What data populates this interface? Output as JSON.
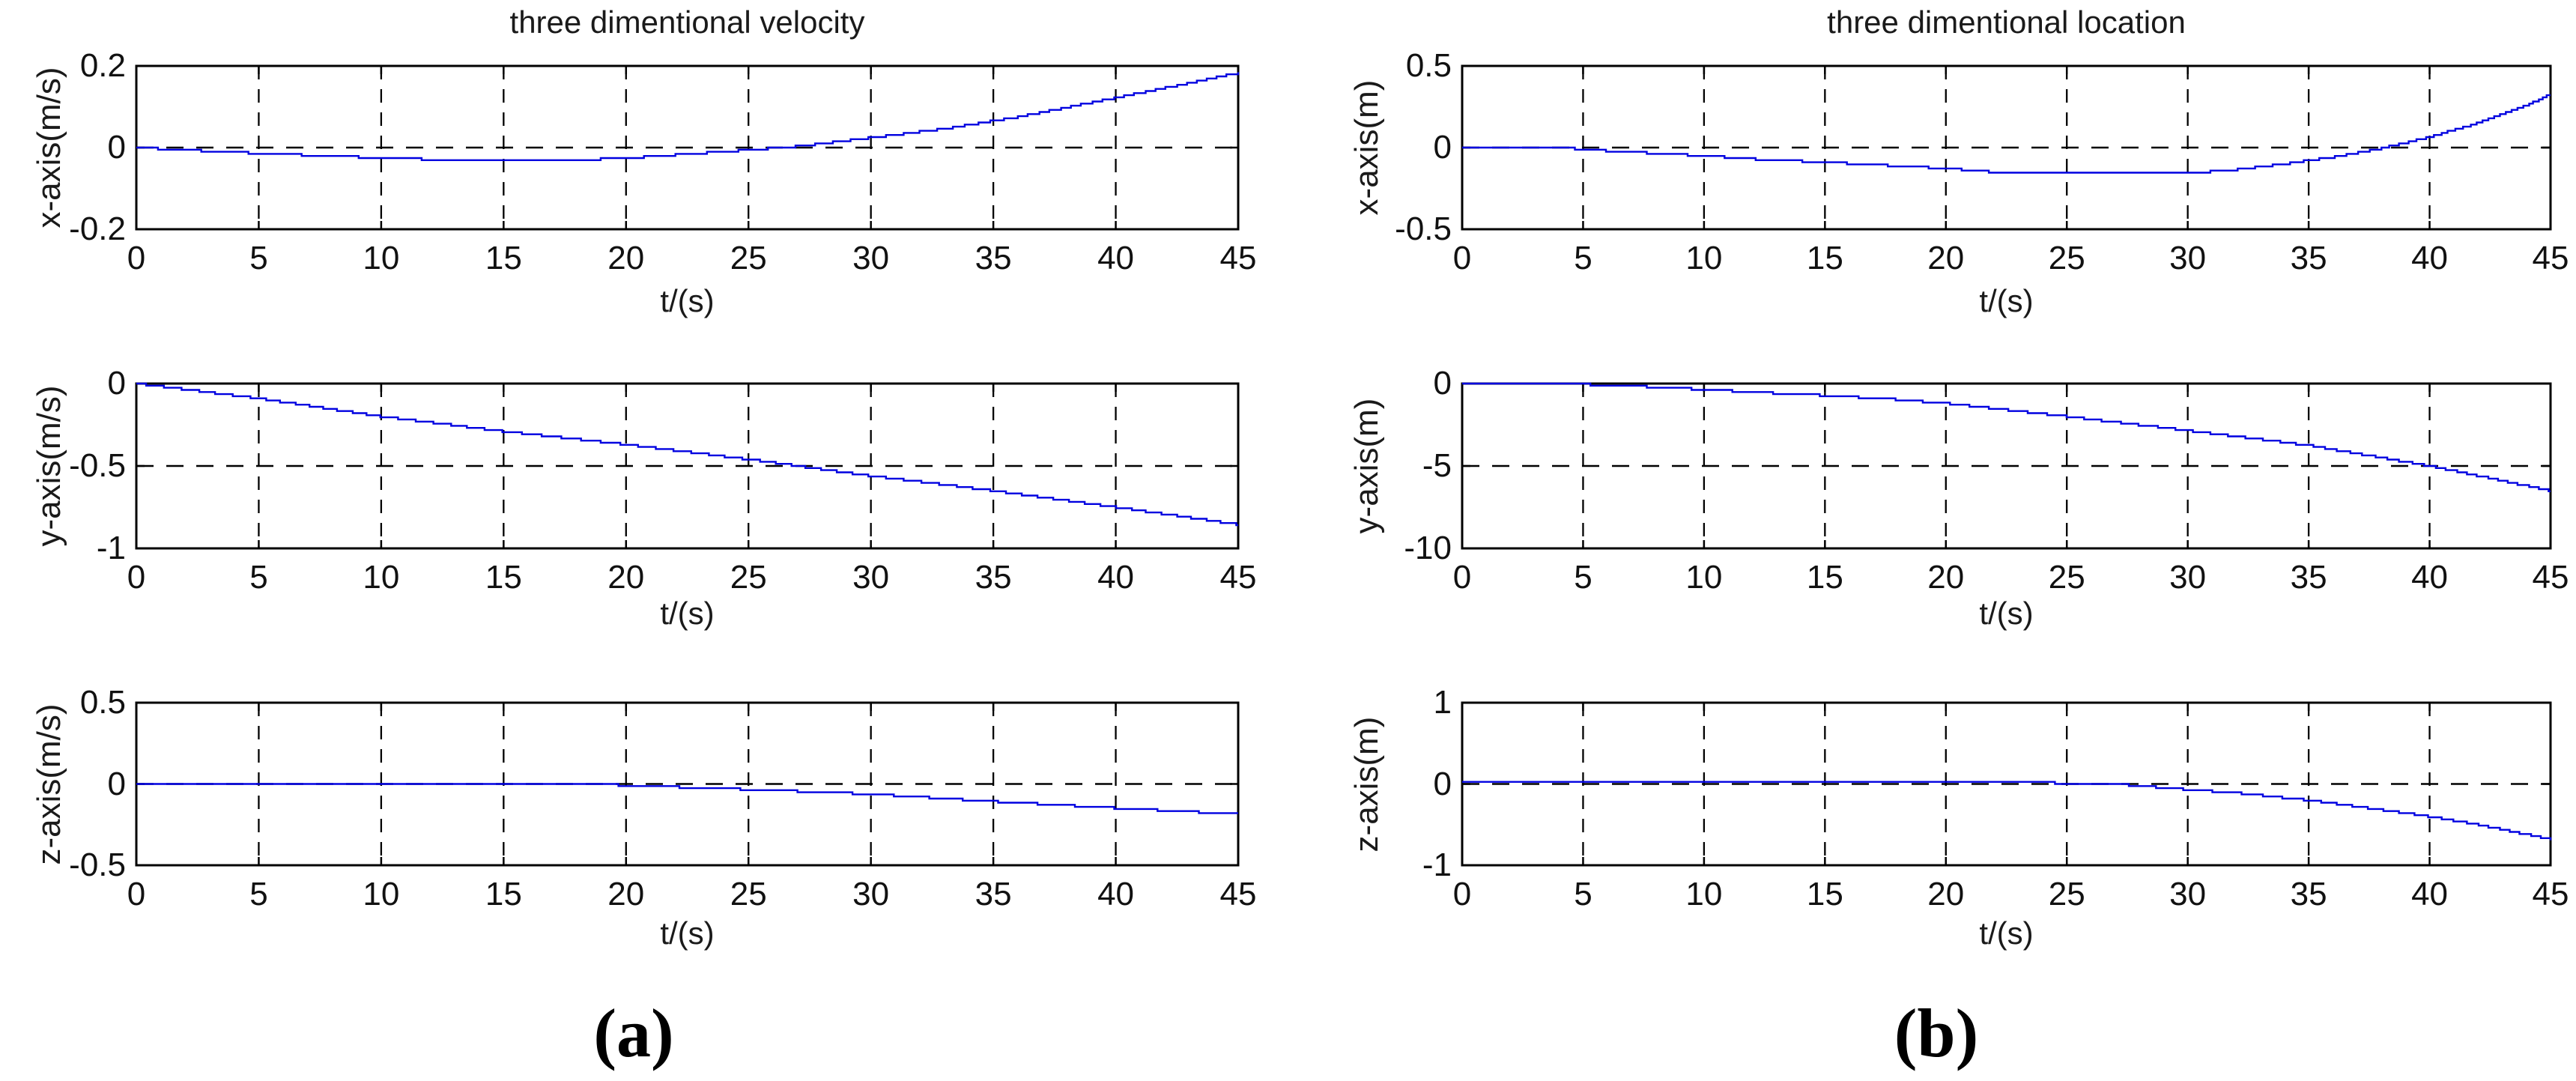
{
  "figure": {
    "background": "#ffffff",
    "text_color": "#000000",
    "axis_color": "#000000",
    "grid_color": "#000000",
    "line_color": "#0000e0"
  },
  "chart_data": {
    "type": "line",
    "grid": "dashed-on-major-ticks",
    "legend": "none",
    "xlim": [
      0,
      45
    ],
    "x_ticks": [
      0,
      5,
      10,
      15,
      20,
      25,
      30,
      35,
      40,
      45
    ],
    "x_tick_labels": [
      "0",
      "5",
      "10",
      "15",
      "20",
      "25",
      "30",
      "35",
      "40",
      "45"
    ],
    "panels": [
      {
        "caption": "(a)",
        "title": "three dimentional velocity",
        "plots": [
          {
            "ylabel": "x-axis(m/s)",
            "xlabel": "t/(s)",
            "ylim": [
              -0.2,
              0.2
            ],
            "y_ticks": [
              "0.2",
              "0",
              "-0.2"
            ],
            "dashed_line_y": 0,
            "x": [
              0,
              2,
              5,
              8,
              10,
              13,
              16,
              18,
              20,
              22,
              25,
              27,
              30,
              33,
              36,
              40,
              43,
              45
            ],
            "y": [
              0,
              -0.006,
              -0.014,
              -0.021,
              -0.025,
              -0.031,
              -0.033,
              -0.03,
              -0.026,
              -0.018,
              -0.006,
              0.003,
              0.024,
              0.046,
              0.075,
              0.122,
              0.158,
              0.183
            ]
          },
          {
            "ylabel": "y-axis(m/s)",
            "xlabel": "t/(s)",
            "ylim": [
              -1,
              0
            ],
            "y_ticks": [
              "0",
              "-0.5",
              "-1"
            ],
            "dashed_line_y": -0.5,
            "x": [
              0,
              5,
              10,
              15,
              20,
              25,
              30,
              35,
              40,
              45
            ],
            "y": [
              0,
              -0.09,
              -0.2,
              -0.29,
              -0.37,
              -0.46,
              -0.56,
              -0.65,
              -0.75,
              -0.855
            ]
          },
          {
            "ylabel": "z-axis(m/s)",
            "xlabel": "t/(s)",
            "ylim": [
              -0.5,
              0.5
            ],
            "y_ticks": [
              "0.5",
              "0",
              "-0.5"
            ],
            "dashed_line_y": 0,
            "x": [
              0,
              17,
              20,
              25,
              30,
              35,
              40,
              45
            ],
            "y": [
              0.006,
              0.006,
              -0.008,
              -0.034,
              -0.062,
              -0.108,
              -0.148,
              -0.185
            ]
          }
        ]
      },
      {
        "caption": "(b)",
        "title": "three dimentional location",
        "plots": [
          {
            "ylabel": "x-axis(m)",
            "xlabel": "t/(s)",
            "ylim": [
              -0.5,
              0.5
            ],
            "y_ticks": [
              "0.5",
              "0",
              "-0.5"
            ],
            "dashed_line_y": 0,
            "x": [
              0,
              4,
              6,
              8,
              10,
              12,
              15,
              18,
              20,
              22,
              25,
              30,
              32,
              34,
              36,
              38,
              40,
              42,
              44,
              45
            ],
            "y": [
              0,
              0,
              -0.02,
              -0.035,
              -0.05,
              -0.07,
              -0.09,
              -0.112,
              -0.128,
              -0.15,
              -0.157,
              -0.157,
              -0.135,
              -0.1,
              -0.058,
              -0.005,
              0.065,
              0.15,
              0.26,
              0.325
            ]
          },
          {
            "ylabel": "y-axis(m)",
            "xlabel": "t/(s)",
            "ylim": [
              -10,
              0
            ],
            "y_ticks": [
              "0",
              "-5",
              "-10"
            ],
            "dashed_line_y": -5,
            "x": [
              0,
              5,
              7,
              10,
              12,
              15,
              18,
              20,
              25,
              30,
              35,
              40,
              45
            ],
            "y": [
              0,
              -0.05,
              -0.15,
              -0.36,
              -0.52,
              -0.72,
              -0.97,
              -1.2,
              -2.0,
              -2.85,
              -3.75,
              -5.0,
              -6.5
            ]
          },
          {
            "ylabel": "z-axis(m)",
            "xlabel": "t/(s)",
            "ylim": [
              -1,
              1
            ],
            "y_ticks": [
              "1",
              "0",
              "-1"
            ],
            "dashed_line_y": 0,
            "x": [
              0,
              20,
              25,
              27,
              30,
              32,
              35,
              38,
              40,
              42,
              45
            ],
            "y": [
              0.02,
              0.02,
              0.012,
              0,
              -0.07,
              -0.11,
              -0.2,
              -0.32,
              -0.4,
              -0.5,
              -0.68
            ]
          }
        ]
      }
    ]
  }
}
